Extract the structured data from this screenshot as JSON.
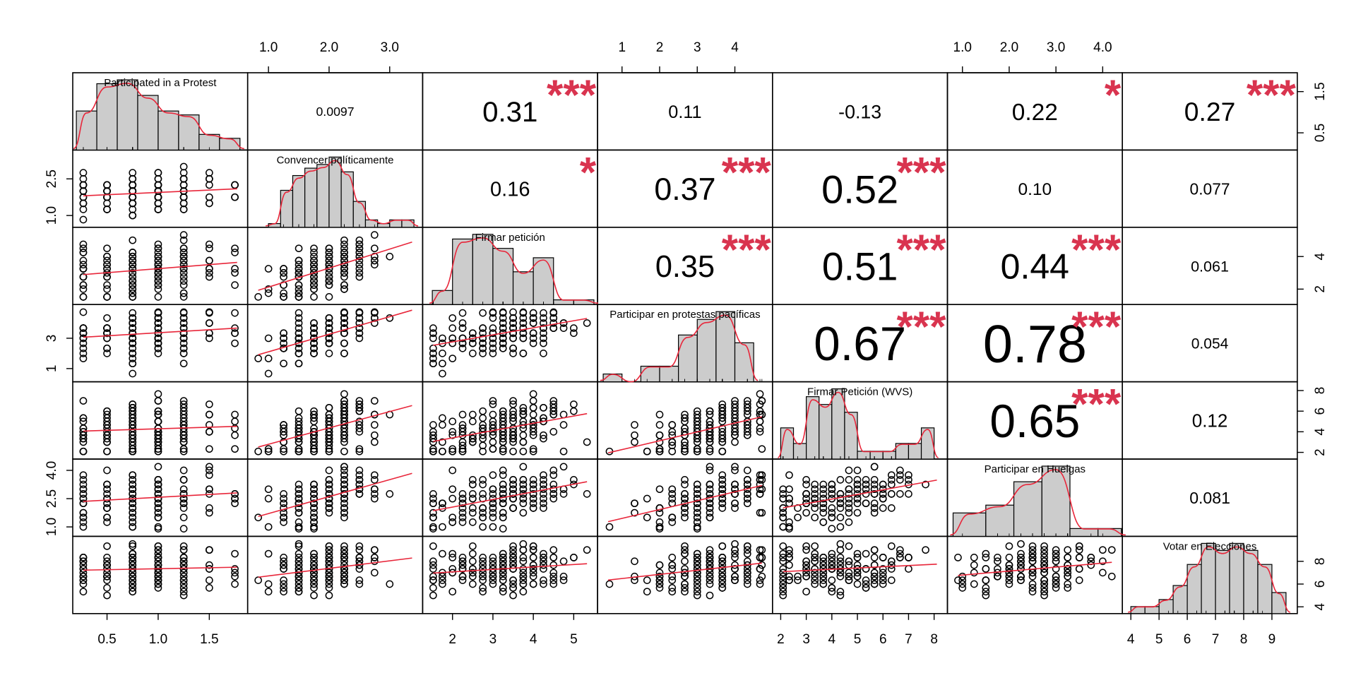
{
  "chart_data": {
    "type": "scatter",
    "title": "",
    "variables": [
      "Participated in a Protest",
      "Convencer políticamente",
      "Firmar petición",
      "Participar en protestas pacíficas",
      "Firmar Petición (WVS)",
      "Participar en Huelgas",
      "Votar en Elecciones"
    ],
    "ranges": [
      [
        0.22,
        1.82
      ],
      [
        0.75,
        3.45
      ],
      [
        1.4,
        5.45
      ],
      [
        0.5,
        4.85
      ],
      [
        1.9,
        8.3
      ],
      [
        0.8,
        4.3
      ],
      [
        3.9,
        9.7
      ]
    ],
    "ticks": {
      "top": [
        [
          "1.0",
          "2.0",
          "3.0"
        ],
        [
          "1",
          "2",
          "3",
          "4"
        ],
        [
          "1.0",
          "2.0",
          "3.0",
          "4.0"
        ]
      ],
      "bottom": [
        [
          "0.5",
          "1.0",
          "1.5"
        ],
        [
          "2",
          "3",
          "4",
          "5"
        ],
        [
          "2",
          "3",
          "4",
          "5",
          "6",
          "7",
          "8"
        ],
        [
          "4",
          "5",
          "6",
          "7",
          "8",
          "9"
        ]
      ],
      "left": [
        [
          "1.0",
          "2.5"
        ],
        [
          "1",
          "3"
        ],
        [
          "1.0",
          "2.5",
          "4.0"
        ]
      ],
      "right": [
        [
          "0.5",
          "1.5"
        ],
        [
          "2",
          "4"
        ],
        [
          "2",
          "4",
          "6",
          "8"
        ],
        [
          "4",
          "6",
          "8"
        ]
      ]
    },
    "correlations": [
      {
        "row": 0,
        "col": 1,
        "value": "0.0097",
        "stars": ""
      },
      {
        "row": 0,
        "col": 2,
        "value": "0.31",
        "stars": "***"
      },
      {
        "row": 0,
        "col": 3,
        "value": "0.11",
        "stars": ""
      },
      {
        "row": 0,
        "col": 4,
        "value": "-0.13",
        "stars": ""
      },
      {
        "row": 0,
        "col": 5,
        "value": "0.22",
        "stars": "*"
      },
      {
        "row": 0,
        "col": 6,
        "value": "0.27",
        "stars": "***"
      },
      {
        "row": 1,
        "col": 2,
        "value": "0.16",
        "stars": "*"
      },
      {
        "row": 1,
        "col": 3,
        "value": "0.37",
        "stars": "***"
      },
      {
        "row": 1,
        "col": 4,
        "value": "0.52",
        "stars": "***"
      },
      {
        "row": 1,
        "col": 5,
        "value": "0.10",
        "stars": ""
      },
      {
        "row": 1,
        "col": 6,
        "value": "0.077",
        "stars": ""
      },
      {
        "row": 2,
        "col": 3,
        "value": "0.35",
        "stars": "***"
      },
      {
        "row": 2,
        "col": 4,
        "value": "0.51",
        "stars": "***"
      },
      {
        "row": 2,
        "col": 5,
        "value": "0.44",
        "stars": "***"
      },
      {
        "row": 2,
        "col": 6,
        "value": "0.061",
        "stars": ""
      },
      {
        "row": 3,
        "col": 4,
        "value": "0.67",
        "stars": "***"
      },
      {
        "row": 3,
        "col": 5,
        "value": "0.78",
        "stars": "***"
      },
      {
        "row": 3,
        "col": 6,
        "value": "0.054",
        "stars": ""
      },
      {
        "row": 4,
        "col": 5,
        "value": "0.65",
        "stars": "***"
      },
      {
        "row": 4,
        "col": 6,
        "value": "0.12",
        "stars": ""
      },
      {
        "row": 5,
        "col": 6,
        "value": "0.081",
        "stars": ""
      }
    ],
    "histograms": [
      {
        "breaks": [
          0.2,
          0.4,
          0.6,
          0.8,
          1.0,
          1.2,
          1.4,
          1.6,
          1.8
        ],
        "counts": [
          10,
          17,
          18,
          14,
          10,
          9,
          4,
          3
        ]
      },
      {
        "breaks": [
          1.0,
          1.2,
          1.4,
          1.6,
          1.8,
          2.0,
          2.2,
          2.4,
          2.6,
          2.8,
          3.0,
          3.2,
          3.4
        ],
        "counts": [
          1,
          10,
          14,
          16,
          17,
          19,
          15,
          7,
          2,
          1,
          2,
          2
        ]
      },
      {
        "breaks": [
          1.5,
          2.0,
          2.5,
          3.0,
          3.5,
          4.0,
          4.5,
          5.0,
          5.5
        ],
        "counts": [
          3,
          14,
          15,
          12,
          7,
          10,
          1,
          1
        ]
      },
      {
        "breaks": [
          0.5,
          1.0,
          1.5,
          2.0,
          2.5,
          3.0,
          3.5,
          4.0,
          4.5
        ],
        "counts": [
          1,
          0,
          2,
          2,
          6,
          8,
          9,
          5
        ]
      },
      {
        "breaks": [
          2,
          2.5,
          3,
          3.5,
          4,
          4.5,
          5,
          5.5,
          6,
          6.5,
          7,
          7.5,
          8
        ],
        "counts": [
          4,
          2,
          8,
          7,
          9,
          6,
          1,
          1,
          1,
          2,
          2,
          4
        ]
      },
      {
        "breaks": [
          0.8,
          1.5,
          2.1,
          2.7,
          3.3,
          3.9,
          4.4
        ],
        "counts": [
          3,
          4,
          7,
          9,
          1,
          1
        ]
      },
      {
        "breaks": [
          4.0,
          4.5,
          5.0,
          5.5,
          6.0,
          6.5,
          7.0,
          7.5,
          8.0,
          8.5,
          9.0,
          9.5
        ],
        "counts": [
          1,
          1,
          2,
          4,
          7,
          10,
          9,
          10,
          9,
          7,
          3
        ]
      }
    ],
    "colors": {
      "frame": "#000000",
      "bar": "#cccccc",
      "smooth": "#e8263a",
      "stars": "#d9344f",
      "points": "#000000"
    }
  }
}
